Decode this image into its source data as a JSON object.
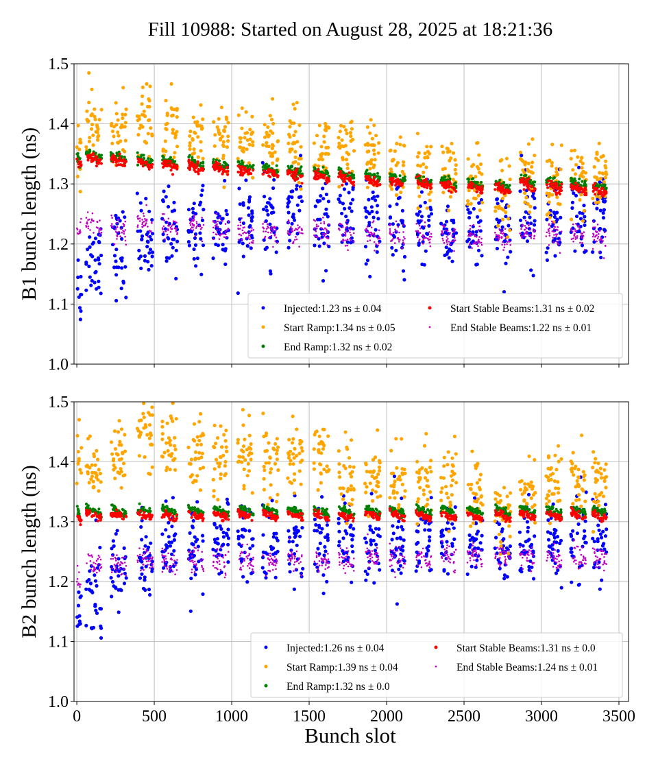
{
  "chart_data": {
    "type": "scatter",
    "title": "Fill 10988: Started on August 28, 2025 at 18:21:36",
    "xlabel": "Bunch slot",
    "xlim": [
      -18,
      3562
    ],
    "xticks": [
      0,
      500,
      1000,
      1500,
      2000,
      2500,
      3000,
      3500
    ],
    "yticks": [
      1.0,
      1.1,
      1.2,
      1.3,
      1.4,
      1.5
    ],
    "grid": true,
    "legend_placement": "lower-right",
    "train_start_slots": [
      0,
      60,
      220,
      390,
      550,
      720,
      880,
      1040,
      1200,
      1360,
      1530,
      1690,
      1860,
      2020,
      2190,
      2350,
      2520,
      2700,
      2860,
      3030,
      3190,
      3330
    ],
    "train_length_slots": 100,
    "panels": [
      {
        "ylabel": "B1 bunch length (ns)",
        "ylim": [
          1.0,
          1.5
        ],
        "series": [
          {
            "name": "Injected:1.23 ns ± 0.04",
            "color": "#0000ff",
            "spread": 0.035,
            "train_mean": [
              1.13,
              1.18,
              1.19,
              1.21,
              1.22,
              1.23,
              1.23,
              1.24,
              1.24,
              1.25,
              1.24,
              1.24,
              1.23,
              1.23,
              1.23,
              1.22,
              1.22,
              1.22,
              1.24,
              1.24,
              1.24,
              1.25
            ]
          },
          {
            "name": "Start Ramp:1.34 ns ± 0.05",
            "color": "#ffa500",
            "spread": 0.03,
            "train_mean": [
              1.36,
              1.39,
              1.39,
              1.4,
              1.39,
              1.38,
              1.38,
              1.37,
              1.37,
              1.37,
              1.36,
              1.35,
              1.34,
              1.33,
              1.32,
              1.31,
              1.3,
              1.29,
              1.31,
              1.3,
              1.31,
              1.3
            ]
          },
          {
            "name": "End Ramp:1.32 ns ± 0.02",
            "color": "#008000",
            "spread": 0.004,
            "train_mean": [
              1.34,
              1.347,
              1.345,
              1.34,
              1.337,
              1.334,
              1.331,
              1.328,
              1.325,
              1.322,
              1.318,
              1.315,
              1.312,
              1.309,
              1.306,
              1.303,
              1.3,
              1.297,
              1.305,
              1.302,
              1.299,
              1.294
            ]
          },
          {
            "name": "Start Stable Beams:1.31 ns ± 0.02",
            "color": "#ff0000",
            "spread": 0.004,
            "train_mean": [
              1.335,
              1.34,
              1.338,
              1.334,
              1.331,
              1.328,
              1.325,
              1.322,
              1.319,
              1.316,
              1.312,
              1.309,
              1.306,
              1.303,
              1.3,
              1.297,
              1.294,
              1.291,
              1.299,
              1.296,
              1.293,
              1.288
            ]
          },
          {
            "name": "End Stable Beams:1.22 ns ± 0.01",
            "color": "#c000c0",
            "spread": 0.01,
            "train_mean": [
              1.22,
              1.23,
              1.225,
              1.23,
              1.23,
              1.23,
              1.225,
              1.22,
              1.22,
              1.22,
              1.22,
              1.215,
              1.215,
              1.215,
              1.215,
              1.21,
              1.21,
              1.21,
              1.22,
              1.22,
              1.215,
              1.21
            ]
          }
        ]
      },
      {
        "ylabel": "B2 bunch length (ns)",
        "ylim": [
          1.0,
          1.5
        ],
        "series": [
          {
            "name": "Injected:1.26 ns ± 0.04",
            "color": "#0000ff",
            "spread": 0.035,
            "train_mean": [
              1.15,
              1.17,
              1.22,
              1.24,
              1.25,
              1.26,
              1.27,
              1.27,
              1.27,
              1.27,
              1.27,
              1.27,
              1.26,
              1.26,
              1.27,
              1.27,
              1.26,
              1.25,
              1.26,
              1.27,
              1.27,
              1.27
            ]
          },
          {
            "name": "Start Ramp:1.39 ns ± 0.04",
            "color": "#ffa500",
            "spread": 0.03,
            "train_mean": [
              1.41,
              1.38,
              1.41,
              1.45,
              1.42,
              1.41,
              1.4,
              1.41,
              1.41,
              1.4,
              1.42,
              1.38,
              1.37,
              1.36,
              1.37,
              1.36,
              1.35,
              1.31,
              1.35,
              1.37,
              1.37,
              1.36
            ]
          },
          {
            "name": "End Ramp:1.32 ns ± 0.0",
            "color": "#008000",
            "spread": 0.003,
            "train_mean": [
              1.315,
              1.318,
              1.318,
              1.318,
              1.318,
              1.318,
              1.318,
              1.318,
              1.318,
              1.318,
              1.318,
              1.318,
              1.318,
              1.318,
              1.318,
              1.318,
              1.318,
              1.318,
              1.318,
              1.318,
              1.318,
              1.318
            ]
          },
          {
            "name": "Start Stable Beams:1.31 ns ± 0.0",
            "color": "#ff0000",
            "spread": 0.003,
            "train_mean": [
              1.305,
              1.31,
              1.31,
              1.31,
              1.31,
              1.31,
              1.31,
              1.31,
              1.31,
              1.31,
              1.31,
              1.31,
              1.31,
              1.31,
              1.31,
              1.31,
              1.31,
              1.31,
              1.31,
              1.31,
              1.31,
              1.31
            ]
          },
          {
            "name": "End Stable Beams:1.24 ns ± 0.01",
            "color": "#c000c0",
            "spread": 0.01,
            "train_mean": [
              1.2,
              1.23,
              1.23,
              1.235,
              1.23,
              1.235,
              1.235,
              1.235,
              1.235,
              1.235,
              1.235,
              1.235,
              1.24,
              1.24,
              1.24,
              1.24,
              1.24,
              1.24,
              1.24,
              1.24,
              1.24,
              1.24
            ]
          }
        ]
      }
    ]
  }
}
